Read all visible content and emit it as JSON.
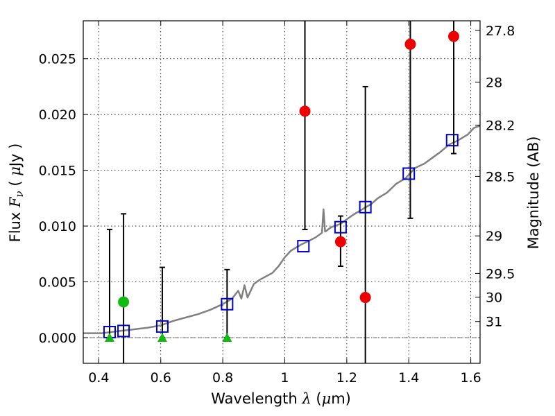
{
  "chart_data": {
    "type": "scatter",
    "xlabel": "Wavelength  λ (μm)",
    "ylabel": "Flux  Fν  ( μJy )",
    "y2label": "Magnitude (AB)",
    "xlim": [
      0.35,
      1.63
    ],
    "ylim": [
      -0.0023,
      0.0284
    ],
    "grid": true,
    "x_ticks": [
      0.4,
      0.6,
      0.8,
      1.0,
      1.2,
      1.4,
      1.6
    ],
    "x_tick_labels": [
      "0.4",
      "0.6",
      "0.8",
      "1",
      "1.2",
      "1.4",
      "1.6"
    ],
    "y_ticks": [
      0.0,
      0.005,
      0.01,
      0.015,
      0.02,
      0.025
    ],
    "y_tick_labels": [
      "0.000",
      "0.005",
      "0.010",
      "0.015",
      "0.020",
      "0.025"
    ],
    "mag_ticks": [
      27.8,
      28,
      28.2,
      28.5,
      29,
      29.5,
      30,
      31
    ],
    "mag_tick_labels": [
      "27.8",
      "28",
      "28.2",
      "28.5",
      "29",
      "29.5",
      "30",
      "31"
    ],
    "colors": {
      "model": "#808080",
      "model_photometry": "#0000cc",
      "detections": "#ee0000",
      "green_point": "#11bb11",
      "upper_limits": "#11bb11",
      "error_bars": "#000000",
      "zero_line": "#444444"
    },
    "model_spectrum": {
      "x": [
        0.35,
        0.38,
        0.41,
        0.44,
        0.47,
        0.5,
        0.53,
        0.56,
        0.6,
        0.64,
        0.68,
        0.72,
        0.76,
        0.8,
        0.83,
        0.85,
        0.86,
        0.87,
        0.88,
        0.9,
        0.92,
        0.94,
        0.96,
        0.98,
        1.0,
        1.02,
        1.05,
        1.08,
        1.1,
        1.12,
        1.125,
        1.13,
        1.15,
        1.18,
        1.2,
        1.22,
        1.25,
        1.28,
        1.3,
        1.33,
        1.36,
        1.39,
        1.42,
        1.45,
        1.48,
        1.5,
        1.53,
        1.56,
        1.59,
        1.61,
        1.63
      ],
      "y": [
        0.0004,
        0.0004,
        0.0004,
        0.0005,
        0.0006,
        0.0007,
        0.0008,
        0.0009,
        0.0011,
        0.0015,
        0.0018,
        0.0021,
        0.0025,
        0.003,
        0.0035,
        0.0042,
        0.0035,
        0.0047,
        0.0036,
        0.0048,
        0.0052,
        0.0055,
        0.0058,
        0.0064,
        0.0072,
        0.0078,
        0.0083,
        0.0087,
        0.009,
        0.0094,
        0.0115,
        0.0095,
        0.0099,
        0.0102,
        0.0106,
        0.011,
        0.0115,
        0.012,
        0.0125,
        0.013,
        0.0138,
        0.0143,
        0.0152,
        0.0156,
        0.0162,
        0.0166,
        0.0173,
        0.0177,
        0.0182,
        0.0188,
        0.019
      ]
    },
    "model_photometry": {
      "x": [
        0.435,
        0.48,
        0.605,
        0.814,
        1.06,
        1.18,
        1.26,
        1.4,
        1.54
      ],
      "y": [
        0.0005,
        0.0006,
        0.001,
        0.003,
        0.0082,
        0.0099,
        0.0117,
        0.0147,
        0.0177
      ]
    },
    "detections": {
      "x": [
        1.065,
        1.18,
        1.26,
        1.405,
        1.545
      ],
      "y": [
        0.0203,
        0.0086,
        0.0036,
        0.0263,
        0.027
      ],
      "err_low": [
        0.0097,
        0.0064,
        -0.0023,
        0.0107,
        0.0165
      ],
      "err_high": [
        0.0284,
        0.0109,
        0.0225,
        0.0284,
        0.0284
      ]
    },
    "green_point": {
      "x": 0.48,
      "y": 0.0032
    },
    "green_errorbar": {
      "x": 0.48,
      "low": -0.0023,
      "high": 0.0111
    },
    "upper_limits": {
      "x": [
        0.435,
        0.605,
        0.814
      ],
      "y": [
        0.0,
        0.0,
        0.0
      ],
      "err_high": [
        0.0097,
        0.0063,
        0.0061
      ]
    }
  }
}
